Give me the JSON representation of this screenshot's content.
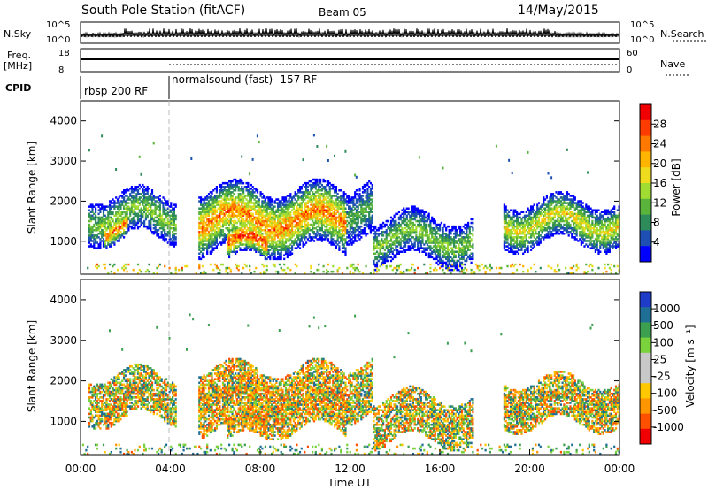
{
  "header": {
    "title": "South Pole Station (fitACF)",
    "beam": "Beam 05",
    "date": "14/May/2015"
  },
  "strips": {
    "nsky_label": "N.Sky",
    "nsearch_label": "N.Search",
    "freq_label": "Freq.",
    "freq_unit": "[MHz]",
    "nave_label": "Nave",
    "cpid_label": "CPID",
    "nsky_ticks": [
      "10^5",
      "10^0"
    ],
    "nsearch_ticks": [
      "10^5",
      "10^0"
    ],
    "freq_ticks": [
      "18",
      "8"
    ],
    "nave_ticks": [
      "60",
      "0"
    ]
  },
  "cpid": {
    "segments": [
      {
        "label": "rbsp 200 RF",
        "start_hour": 0
      },
      {
        "label": "normalsound (fast) -157 RF",
        "start_hour": 3.2
      }
    ]
  },
  "chart_data": [
    {
      "type": "heatmap",
      "name": "power",
      "ylabel": "Slant Range [km]",
      "ylim": [
        180,
        4500
      ],
      "yticks": [
        1000,
        2000,
        3000,
        4000
      ],
      "xlim": [
        0,
        24
      ],
      "colorbar": {
        "label": "Power [dB]",
        "range": [
          0,
          32
        ],
        "ticks": [
          "28",
          "24",
          "20",
          "16",
          "12",
          "8",
          "4"
        ],
        "colors": [
          "#0000ff",
          "#1e50b4",
          "#2d8c5a",
          "#5ab43c",
          "#a0dc32",
          "#f0dc1e",
          "#ffb400",
          "#ff7800",
          "#ff3c00",
          "#f00000"
        ]
      }
    },
    {
      "type": "heatmap",
      "name": "velocity",
      "ylabel": "Slant Range [km]",
      "ylim": [
        180,
        4500
      ],
      "yticks": [
        1000,
        2000,
        3000,
        4000
      ],
      "xlim": [
        0,
        24
      ],
      "colorbar": {
        "label": "Velocity [m s⁻¹]",
        "range": [
          -1200,
          1200
        ],
        "ticks": [
          "1000",
          "500",
          "100",
          "25",
          "-25",
          "-100",
          "-500",
          "-1000"
        ],
        "colors": [
          "#f00000",
          "#ff5000",
          "#ff9600",
          "#ffc800",
          "#c8c8c8",
          "#c8c8c8",
          "#7ad23c",
          "#3ca050",
          "#1e6e96",
          "#1e3cc8"
        ]
      }
    }
  ],
  "xaxis": {
    "label": "Time UT",
    "ticks": [
      "00:00",
      "04:00",
      "08:00",
      "12:00",
      "16:00",
      "20:00",
      "00:00"
    ]
  },
  "scatter_bands": [
    {
      "t0": 0.3,
      "t1": 4.2,
      "r0": 1050,
      "r1": 2150,
      "intensity": 0.45
    },
    {
      "t0": 1.0,
      "t1": 2.1,
      "r0": 1000,
      "r1": 1700,
      "intensity": 0.85
    },
    {
      "t0": 5.2,
      "t1": 11.8,
      "r0": 750,
      "r1": 2300,
      "intensity": 0.8
    },
    {
      "t0": 6.5,
      "t1": 8.3,
      "r0": 500,
      "r1": 1300,
      "intensity": 0.95
    },
    {
      "t0": 11.5,
      "t1": 13.0,
      "r0": 1100,
      "r1": 2400,
      "intensity": 0.35
    },
    {
      "t0": 13.0,
      "t1": 17.5,
      "r0": 500,
      "r1": 1600,
      "intensity": 0.45
    },
    {
      "t0": 18.8,
      "t1": 24.0,
      "r0": 900,
      "r1": 2000,
      "intensity": 0.6
    }
  ]
}
